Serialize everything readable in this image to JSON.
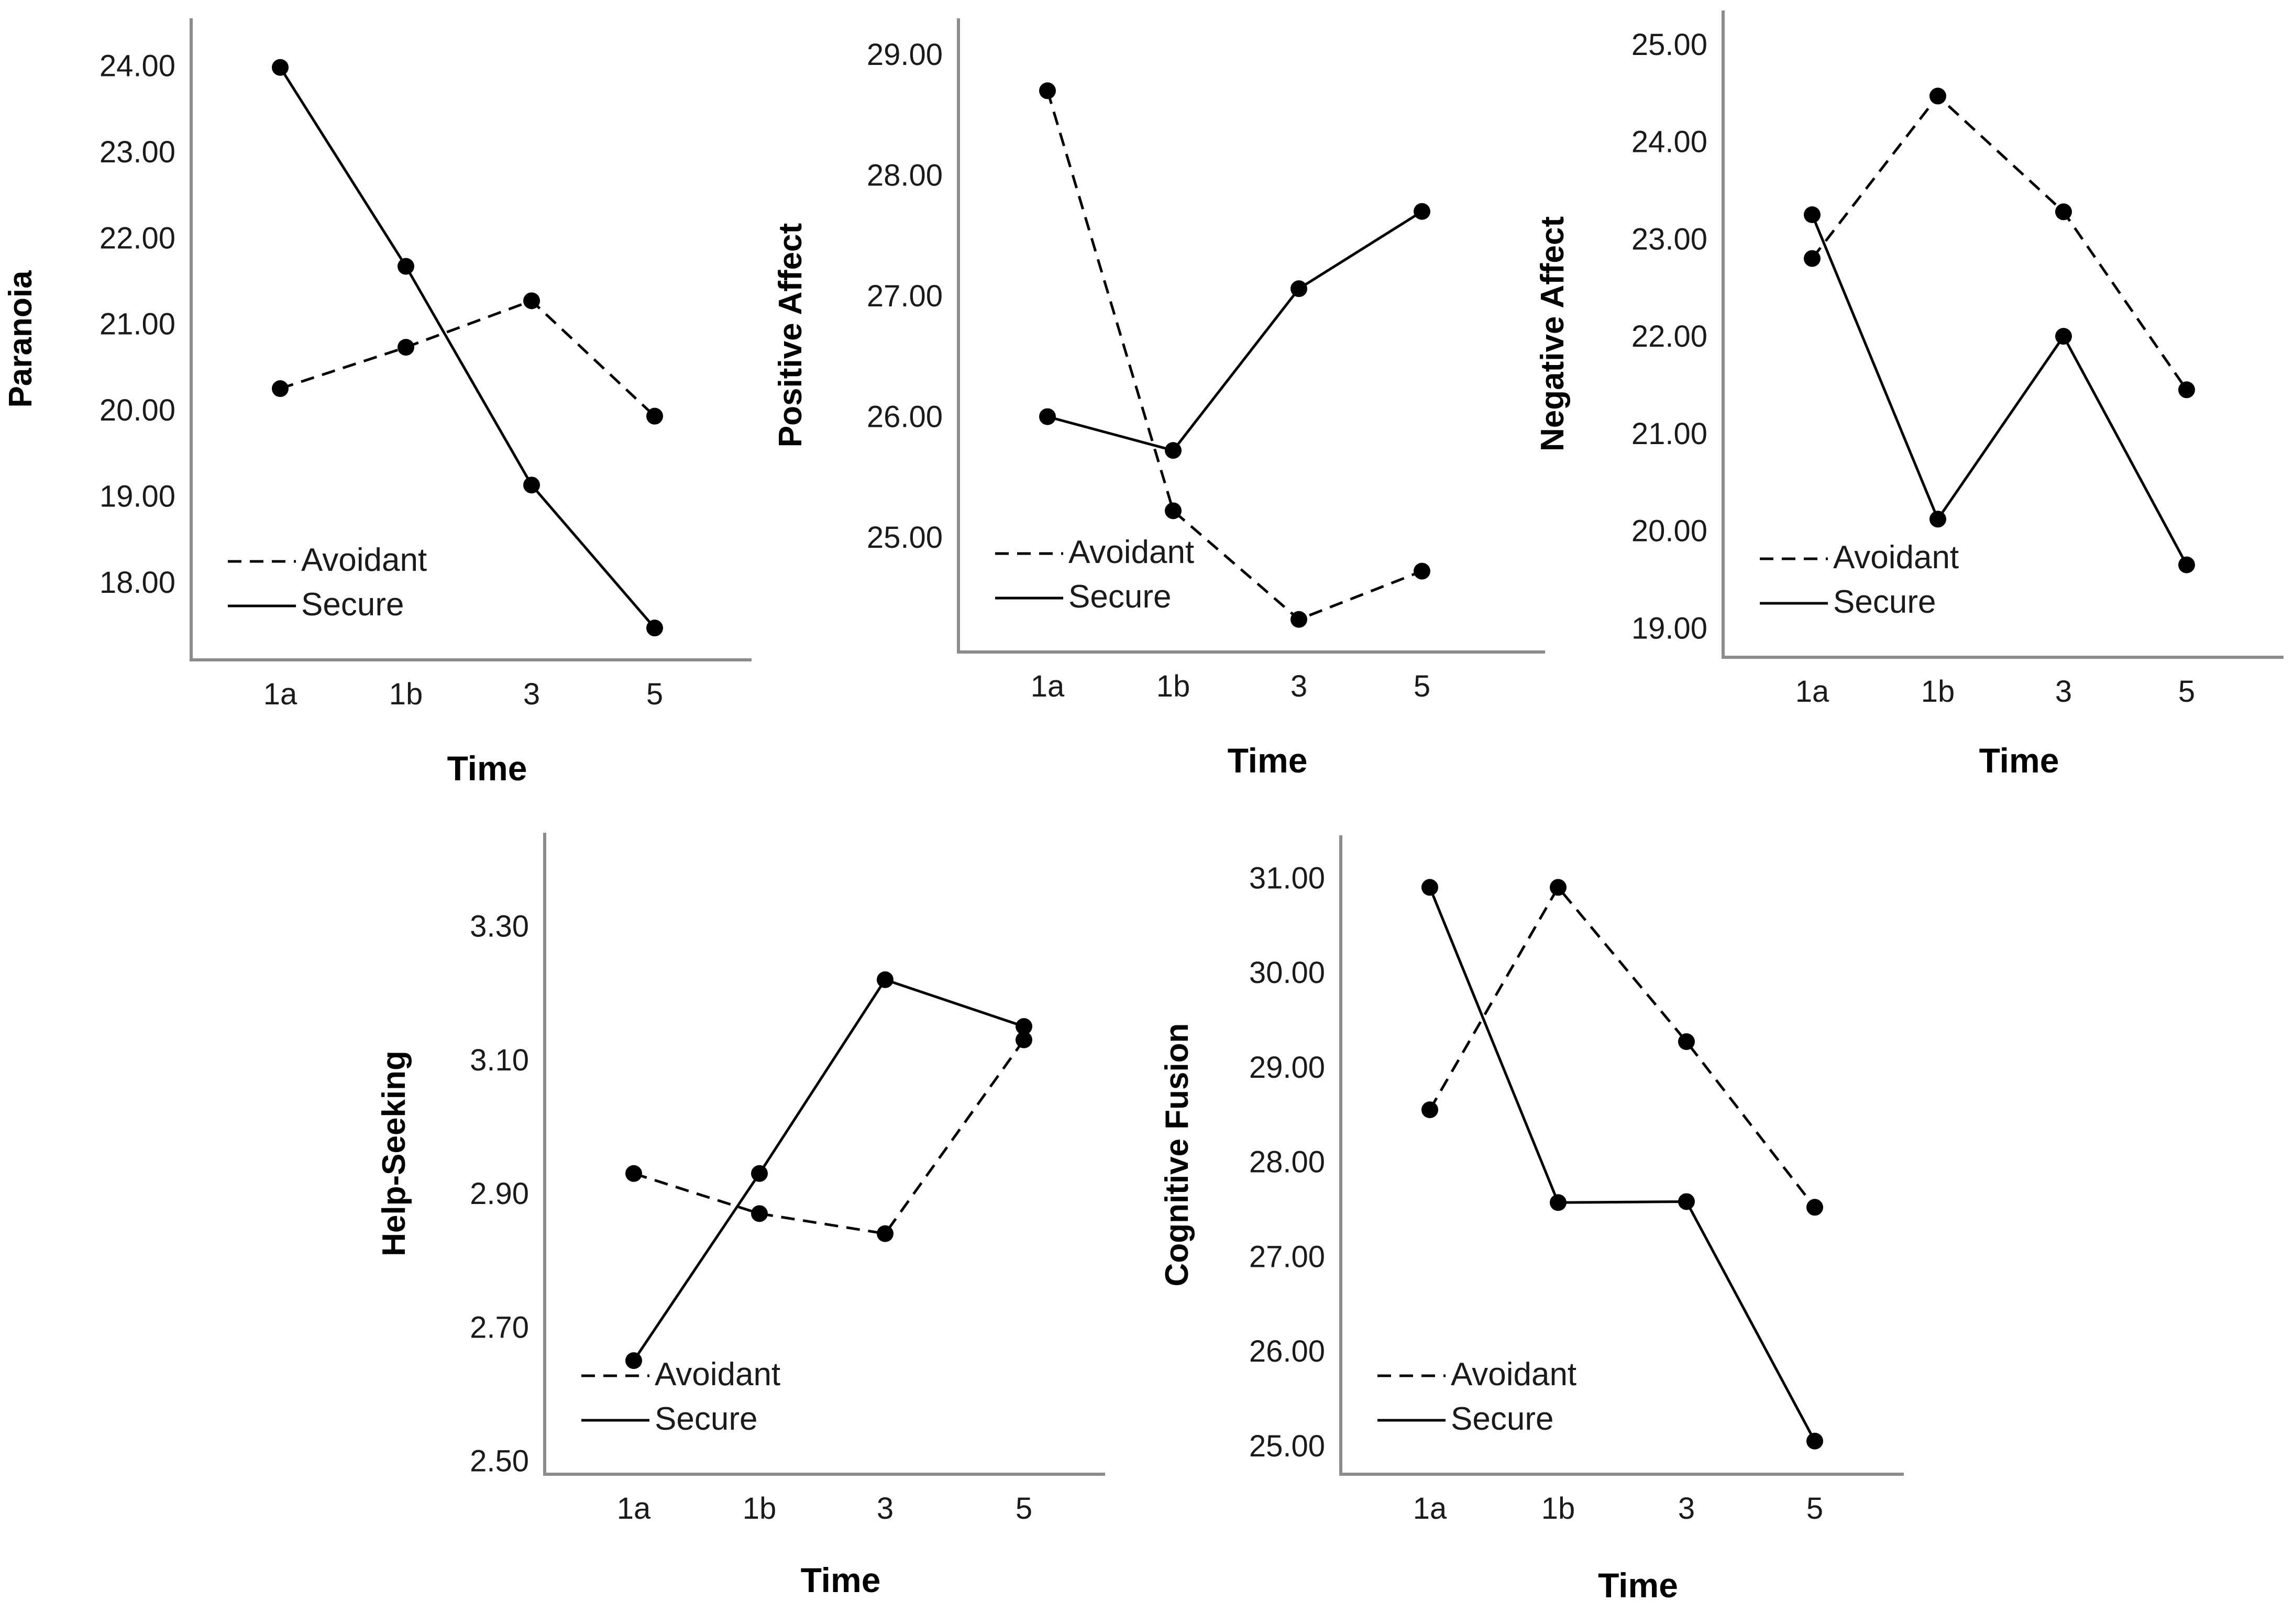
{
  "chart_data": [
    {
      "type": "line",
      "ylabel": "Paranoia",
      "xlabel": "Time",
      "categories": [
        "1a",
        "1b",
        "3",
        "5"
      ],
      "yticks": [
        "18.00",
        "19.00",
        "20.00",
        "21.00",
        "22.00",
        "23.00",
        "24.00"
      ],
      "ylim": [
        17.1,
        24.55
      ],
      "series": [
        {
          "name": "Avoidant",
          "style": "dashed",
          "values": [
            20.25,
            20.73,
            21.27,
            19.93
          ]
        },
        {
          "name": "Secure",
          "style": "solid",
          "values": [
            23.98,
            21.67,
            19.13,
            17.47
          ]
        }
      ]
    },
    {
      "type": "line",
      "ylabel": "Positive Affect",
      "xlabel": "Time",
      "categories": [
        "1a",
        "1b",
        "3",
        "5"
      ],
      "yticks": [
        "25.00",
        "26.00",
        "27.00",
        "28.00",
        "29.00"
      ],
      "ylim": [
        24.05,
        29.3
      ],
      "series": [
        {
          "name": "Avoidant",
          "style": "dashed",
          "values": [
            28.7,
            25.22,
            24.32,
            24.72
          ]
        },
        {
          "name": "Secure",
          "style": "solid",
          "values": [
            26.0,
            25.72,
            27.06,
            27.7
          ]
        }
      ]
    },
    {
      "type": "line",
      "ylabel": "Negative Affect",
      "xlabel": "Time",
      "categories": [
        "1a",
        "1b",
        "3",
        "5"
      ],
      "yticks": [
        "19.00",
        "20.00",
        "21.00",
        "22.00",
        "23.00",
        "24.00",
        "25.00"
      ],
      "ylim": [
        18.7,
        25.35
      ],
      "series": [
        {
          "name": "Avoidant",
          "style": "dashed",
          "values": [
            22.8,
            24.47,
            23.28,
            21.45
          ]
        },
        {
          "name": "Secure",
          "style": "solid",
          "values": [
            23.25,
            20.12,
            22.0,
            19.65
          ]
        }
      ]
    },
    {
      "type": "line",
      "ylabel": "Help-Seeking",
      "xlabel": "Time",
      "categories": [
        "1a",
        "1b",
        "3",
        "5"
      ],
      "yticks": [
        "2.50",
        "2.70",
        "2.90",
        "3.10",
        "3.30"
      ],
      "ylim": [
        2.48,
        3.44
      ],
      "series": [
        {
          "name": "Avoidant",
          "style": "dashed",
          "values": [
            2.93,
            2.87,
            2.84,
            3.13
          ]
        },
        {
          "name": "Secure",
          "style": "solid",
          "values": [
            2.65,
            2.93,
            3.22,
            3.15
          ]
        }
      ]
    },
    {
      "type": "line",
      "ylabel": "Cognitive Fusion",
      "xlabel": "Time",
      "categories": [
        "1a",
        "1b",
        "3",
        "5"
      ],
      "yticks": [
        "25.00",
        "26.00",
        "27.00",
        "28.00",
        "29.00",
        "30.00",
        "31.00"
      ],
      "ylim": [
        24.7,
        31.45
      ],
      "series": [
        {
          "name": "Avoidant",
          "style": "dashed",
          "values": [
            28.55,
            30.9,
            29.27,
            27.52
          ]
        },
        {
          "name": "Secure",
          "style": "solid",
          "values": [
            30.9,
            27.57,
            27.58,
            25.05
          ]
        }
      ]
    }
  ]
}
